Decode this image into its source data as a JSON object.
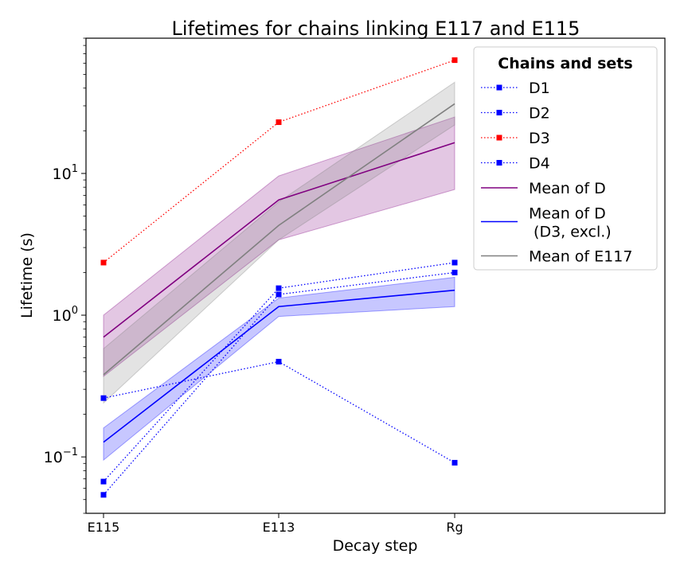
{
  "chart_data": {
    "type": "line",
    "title": "Lifetimes for chains linking E117 and E115",
    "xlabel": "Decay step",
    "ylabel": "Lifetime (s)",
    "yscale": "log",
    "ylim": [
      0.04,
      90
    ],
    "categories": [
      "E115",
      "E113",
      "Rg"
    ],
    "y_ticks": [
      {
        "value": 0.1,
        "base": "10",
        "exp": "−1"
      },
      {
        "value": 1,
        "base": "10",
        "exp": "0"
      },
      {
        "value": 10,
        "base": "10",
        "exp": "1"
      }
    ],
    "legend": {
      "title": "Chains and sets",
      "placement": "upper right"
    },
    "series": [
      {
        "name": "D1",
        "kind": "points",
        "color": "#0000ff",
        "values": [
          0.067,
          1.55,
          2.35
        ]
      },
      {
        "name": "D2",
        "kind": "points",
        "color": "#0000ff",
        "values": [
          0.054,
          1.4,
          2.0
        ]
      },
      {
        "name": "D3",
        "kind": "points",
        "color": "#ff0000",
        "values": [
          2.35,
          23.0,
          63.0
        ]
      },
      {
        "name": "D4",
        "kind": "points",
        "color": "#0000ff",
        "values": [
          0.26,
          0.47,
          0.091
        ]
      },
      {
        "name": "Mean of D",
        "kind": "mean",
        "color": "#800080",
        "values": [
          0.7,
          6.5,
          16.5
        ],
        "lower": [
          0.37,
          3.4,
          7.7
        ],
        "upper": [
          1.0,
          9.6,
          25.0
        ]
      },
      {
        "name": "Mean of D\n (D3, excl.)",
        "kind": "mean",
        "color": "#0000ff",
        "values": [
          0.127,
          1.15,
          1.5
        ],
        "lower": [
          0.095,
          0.98,
          1.15
        ],
        "upper": [
          0.16,
          1.32,
          1.85
        ]
      },
      {
        "name": "Mean of E117",
        "kind": "mean",
        "color": "#808080",
        "values": [
          0.38,
          4.3,
          31.0
        ],
        "lower": [
          0.24,
          3.4,
          22.0
        ],
        "upper": [
          0.58,
          6.3,
          44.0
        ]
      }
    ]
  }
}
